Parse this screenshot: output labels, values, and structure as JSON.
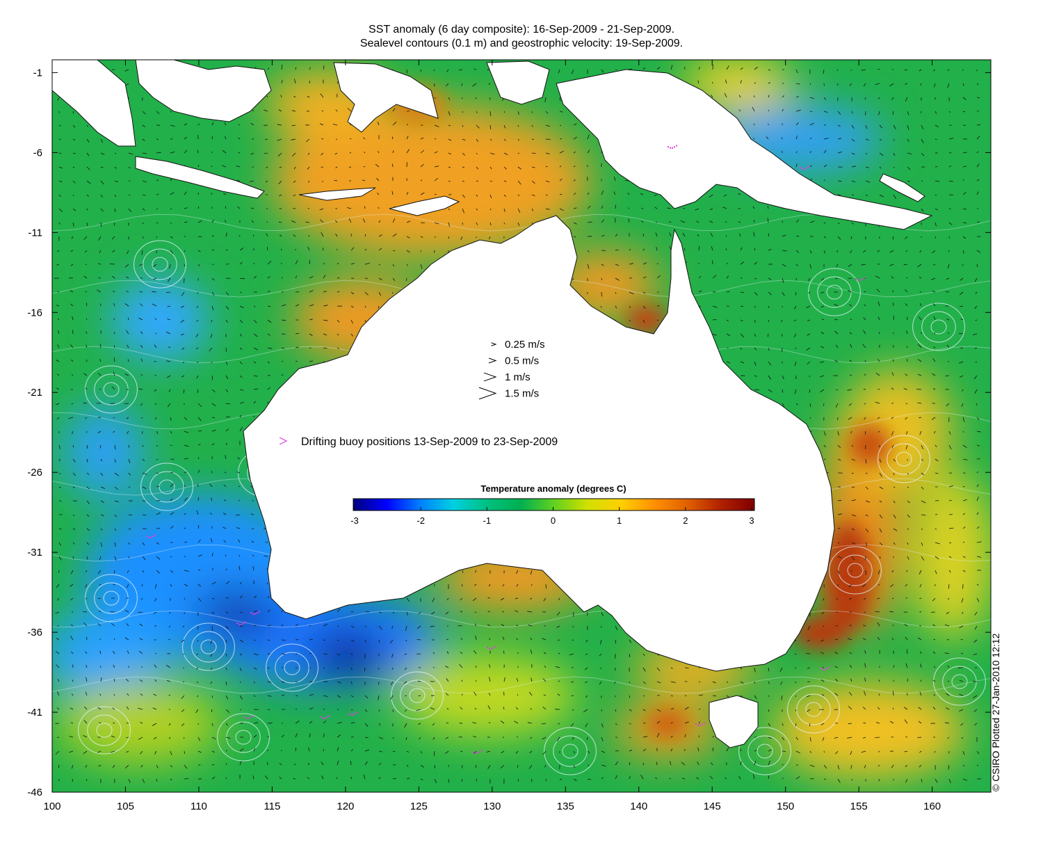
{
  "title": {
    "line1": "SST anomaly (6 day composite): 16-Sep-2009 - 21-Sep-2009.",
    "line2": "Sealevel contours (0.1 m) and geostrophic velocity: 19-Sep-2009."
  },
  "axes": {
    "x_ticks": [
      "100",
      "105",
      "110",
      "115",
      "120",
      "125",
      "130",
      "135",
      "140",
      "145",
      "150",
      "155",
      "160"
    ],
    "y_ticks": [
      "-1",
      "-6",
      "-11",
      "-16",
      "-21",
      "-26",
      "-31",
      "-36",
      "-41",
      "-46"
    ],
    "lon_range": [
      100,
      164
    ],
    "lat_range": [
      -46,
      -0.2
    ]
  },
  "velocity_legend": [
    {
      "label": "0.25 m/s",
      "speed": 0.25
    },
    {
      "label": "0.5 m/s",
      "speed": 0.5
    },
    {
      "label": "1 m/s",
      "speed": 1
    },
    {
      "label": "1.5 m/s",
      "speed": 1.5
    }
  ],
  "buoy_legend": {
    "label": "Drifting buoy positions 13-Sep-2009 to 23-Sep-2009",
    "color": "#e040e0"
  },
  "colorbar": {
    "title": "Temperature anomaly (degrees C)",
    "ticks": [
      "-3",
      "-2",
      "-1",
      "0",
      "1",
      "2",
      "3"
    ],
    "range": [
      -3,
      3
    ],
    "colors": [
      "#00007f",
      "#0000ff",
      "#0080ff",
      "#00d0e0",
      "#00c080",
      "#00b050",
      "#60d020",
      "#d0e000",
      "#ffd000",
      "#ff9000",
      "#e06000",
      "#b02000",
      "#7f0000"
    ]
  },
  "credit": "© CSIRO Plotted 27-Jan-2010 12:12",
  "colors": {
    "land": "#ffffff",
    "ocean_base": "#22b04a",
    "warm": "#f0a020",
    "hot": "#c8400a",
    "cool": "#1e90ff",
    "cold": "#0a1e96",
    "contour": "#e8f4ff"
  }
}
